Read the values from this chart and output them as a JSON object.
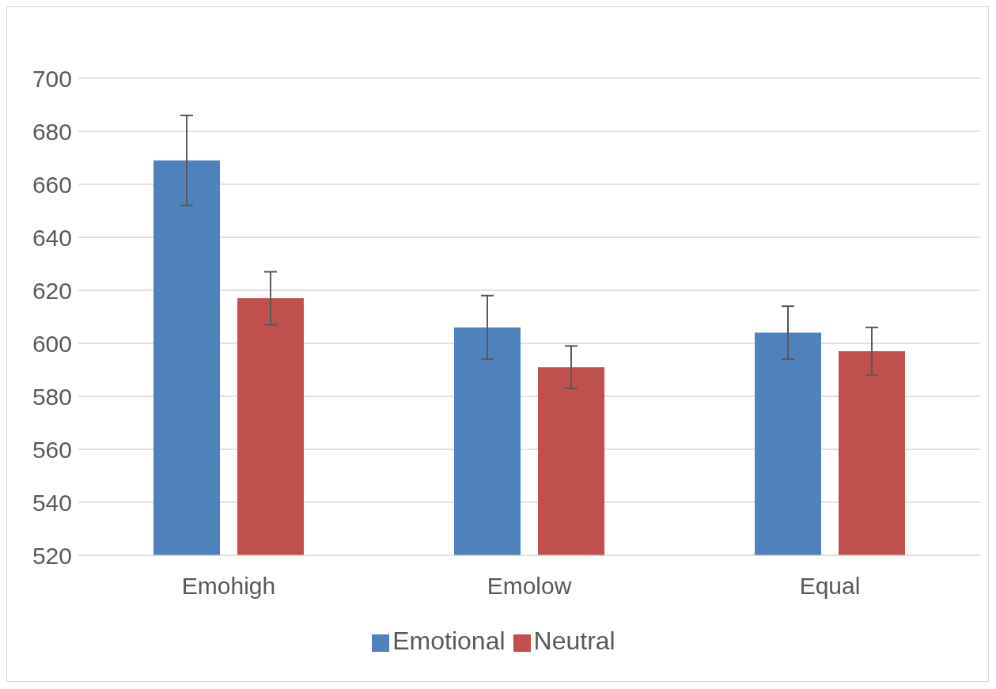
{
  "chart_data": {
    "type": "bar",
    "categories": [
      "Emohigh",
      "Emolow",
      "Equal"
    ],
    "series": [
      {
        "name": "Emotional",
        "color": "#4f81bd",
        "values": [
          669,
          606,
          604
        ],
        "errors": [
          17,
          12,
          10
        ]
      },
      {
        "name": "Neutral",
        "color": "#c0504d",
        "values": [
          617,
          591,
          597
        ],
        "errors": [
          10,
          8,
          9
        ]
      }
    ],
    "ylim": [
      520,
      700
    ],
    "yticks": [
      520,
      540,
      560,
      580,
      600,
      620,
      640,
      660,
      680,
      700
    ],
    "grid": "y",
    "legend": "bottom"
  }
}
